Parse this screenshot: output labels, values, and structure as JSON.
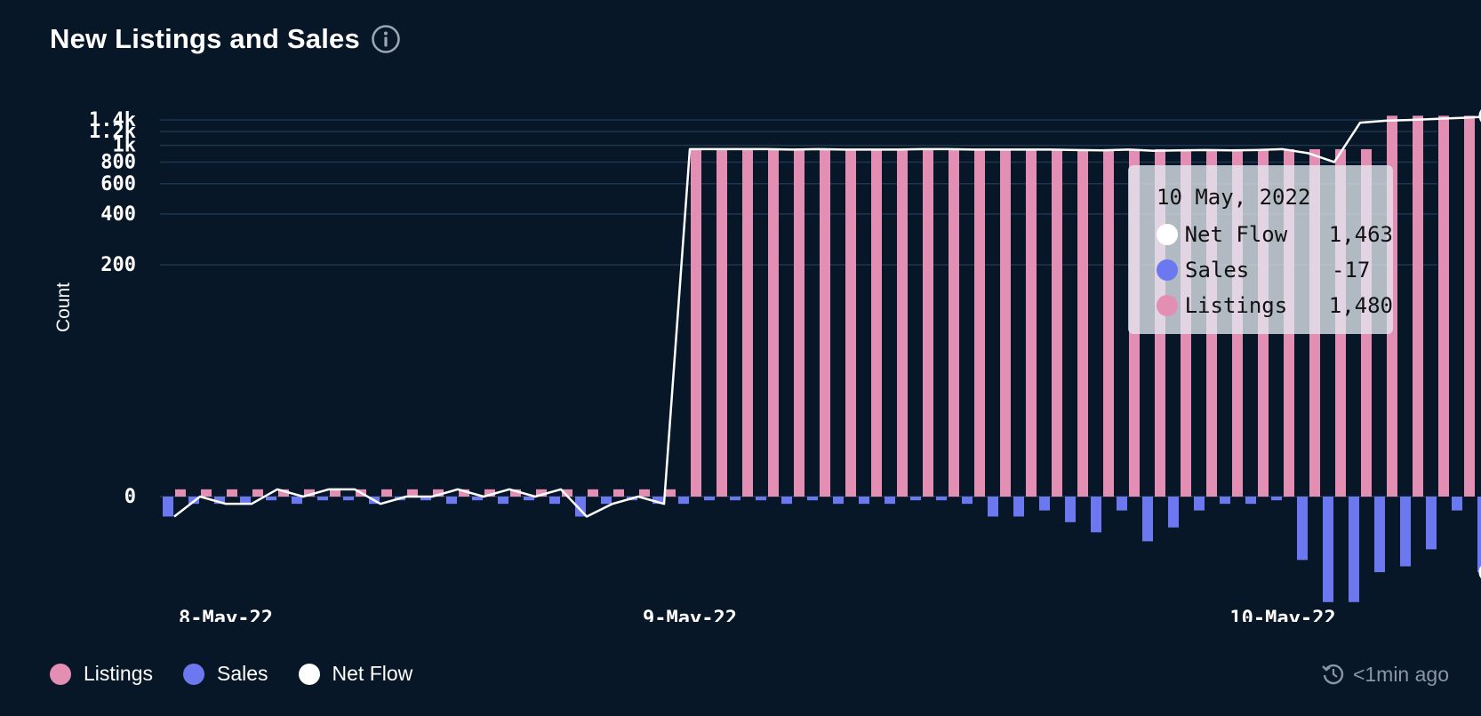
{
  "header": {
    "title": "New Listings and Sales",
    "info_icon": "info-icon"
  },
  "legend": [
    {
      "label": "Listings",
      "color": "#e38fb4"
    },
    {
      "label": "Sales",
      "color": "#6b78f0"
    },
    {
      "label": "Net Flow",
      "color": "#ffffff"
    }
  ],
  "refresh": {
    "icon": "refresh-clock-icon",
    "text": "<1min ago"
  },
  "tooltip": {
    "date": "10 May, 2022",
    "rows": [
      {
        "label": "Net Flow",
        "value": "1,463",
        "color": "#ffffff"
      },
      {
        "label": "Sales",
        "value": "-17",
        "color": "#6b78f0"
      },
      {
        "label": "Listings",
        "value": "1,480",
        "color": "#e38fb4"
      }
    ]
  },
  "chart_data": {
    "type": "bar",
    "ylabel": "Count",
    "y_scale": "symlog",
    "ylim": [
      -40,
      1520
    ],
    "yticks": [
      0,
      200,
      400,
      600,
      800,
      1000,
      1200,
      1400
    ],
    "ytick_labels": [
      "0",
      "200",
      "400",
      "600",
      "800",
      "1k",
      "1.2k",
      "1.4k"
    ],
    "xtick_labels": [
      "8-May-22",
      "9-May-22",
      "10-May-22"
    ],
    "xtick_index": [
      2,
      20,
      43
    ],
    "grid": true,
    "legend_position": "bottom-left",
    "series": [
      {
        "name": "Listings",
        "color": "#e38fb4",
        "values": [
          1,
          1,
          1,
          1,
          1,
          1,
          1,
          1,
          1,
          1,
          1,
          1,
          1,
          1,
          1,
          1,
          1,
          1,
          1,
          1,
          950,
          950,
          950,
          950,
          950,
          950,
          950,
          950,
          950,
          950,
          950,
          950,
          950,
          950,
          950,
          950,
          950,
          950,
          950,
          950,
          950,
          950,
          950,
          950,
          950,
          950,
          950,
          1480,
          1480,
          1480,
          1480,
          1480
        ]
      },
      {
        "name": "Sales",
        "color": "#6b78f0",
        "values": [
          -3,
          -1,
          -1,
          -1,
          -0.5,
          -1,
          -0.5,
          -0.5,
          -1,
          -0.5,
          -0.5,
          -1,
          -0.5,
          -1,
          -0.5,
          -1,
          -3,
          -1,
          -0.5,
          -1,
          -1,
          -0.5,
          -0.5,
          -0.5,
          -1,
          -0.5,
          -1,
          -1,
          -1,
          -0.5,
          -0.5,
          -1,
          -3,
          -3,
          -2,
          -4,
          -6,
          -2,
          -8,
          -5,
          -2,
          -1,
          -1,
          -0.5,
          -13,
          -30,
          -30,
          -17,
          -15,
          -10,
          -2,
          -17
        ]
      },
      {
        "name": "Net Flow",
        "color": "#ffffff",
        "values": [
          -3,
          0,
          -1,
          -1,
          1,
          0,
          1,
          1,
          -1,
          0,
          0,
          1,
          0,
          1,
          0,
          1,
          -3,
          -1,
          0,
          -1,
          950,
          950,
          950,
          950,
          945,
          950,
          945,
          945,
          945,
          950,
          950,
          945,
          945,
          945,
          945,
          940,
          935,
          945,
          930,
          935,
          940,
          935,
          940,
          950,
          900,
          800,
          1350,
          1385,
          1400,
          1420,
          1440,
          1463
        ]
      }
    ]
  }
}
